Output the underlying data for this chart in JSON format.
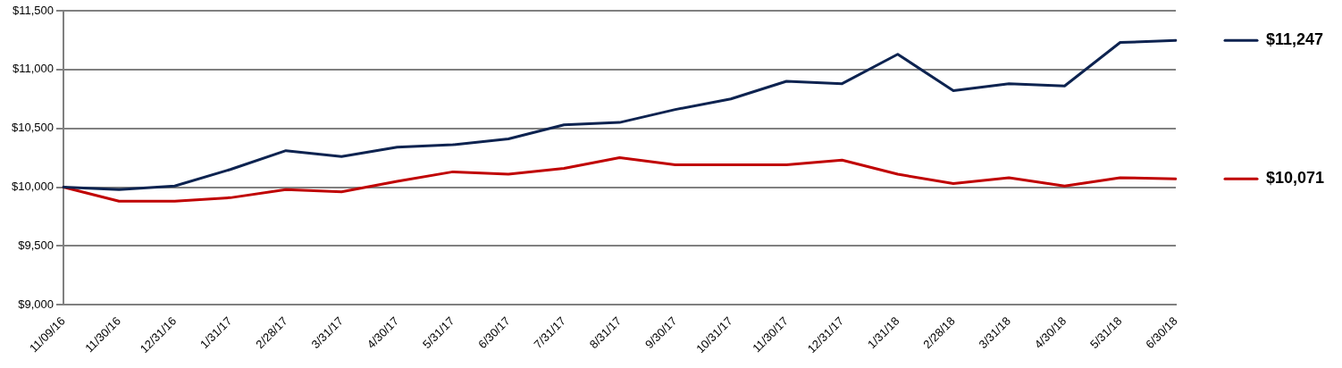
{
  "chart_data": {
    "type": "line",
    "categories": [
      "11/09/16",
      "11/30/16",
      "12/31/16",
      "1/31/17",
      "2/28/17",
      "3/31/17",
      "4/30/17",
      "5/31/17",
      "6/30/17",
      "7/31/17",
      "8/31/17",
      "9/30/17",
      "10/31/17",
      "11/30/17",
      "12/31/17",
      "1/31/18",
      "2/28/18",
      "3/31/18",
      "4/30/18",
      "5/31/18",
      "6/30/18"
    ],
    "series": [
      {
        "color": "#0d2350",
        "values": [
          10000,
          9980,
          10010,
          10150,
          10310,
          10260,
          10340,
          10360,
          10410,
          10530,
          10550,
          10660,
          10750,
          10900,
          10880,
          11130,
          10820,
          10880,
          10860,
          11230,
          11247
        ]
      },
      {
        "color": "#c00000",
        "values": [
          10000,
          9880,
          9880,
          9910,
          9980,
          9960,
          10050,
          10130,
          10110,
          10160,
          10250,
          10190,
          10190,
          10190,
          10230,
          10110,
          10030,
          10080,
          10010,
          10080,
          10071
        ]
      }
    ],
    "ylim": [
      9000,
      11500
    ],
    "yticks": [
      {
        "value": 9000,
        "label": "$9,000"
      },
      {
        "value": 9500,
        "label": "$9,500"
      },
      {
        "value": 10000,
        "label": "$10,000"
      },
      {
        "value": 10500,
        "label": "$10,500"
      },
      {
        "value": 11000,
        "label": "$11,000"
      },
      {
        "value": 11500,
        "label": "$11,500"
      }
    ],
    "grid": "y",
    "marker": "none",
    "line_style": "solid",
    "legend": false,
    "annotations": [
      "$11,247",
      "$10,071"
    ]
  }
}
